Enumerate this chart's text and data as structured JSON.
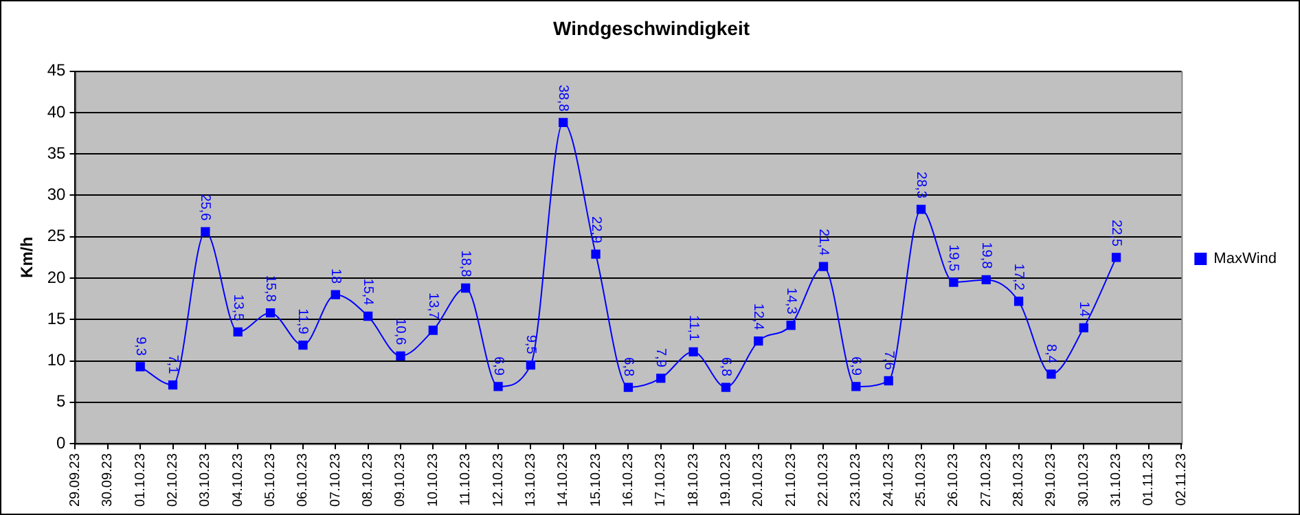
{
  "chart_data": {
    "type": "line",
    "title": "Windgeschwindigkeit",
    "ylabel": "Km/h",
    "categories": [
      "29.09.23",
      "30.09.23",
      "01.10.23",
      "02.10.23",
      "03.10.23",
      "04.10.23",
      "05.10.23",
      "06.10.23",
      "07.10.23",
      "08.10.23",
      "09.10.23",
      "10.10.23",
      "11.10.23",
      "12.10.23",
      "13.10.23",
      "14.10.23",
      "15.10.23",
      "16.10.23",
      "17.10.23",
      "18.10.23",
      "19.10.23",
      "20.10.23",
      "21.10.23",
      "22.10.23",
      "23.10.23",
      "24.10.23",
      "25.10.23",
      "26.10.23",
      "27.10.23",
      "28.10.23",
      "29.10.23",
      "30.10.23",
      "31.10.23",
      "01.11.23",
      "02.11.23"
    ],
    "series": [
      {
        "name": "MaxWind",
        "color": "#0000ff",
        "values": [
          null,
          null,
          9.3,
          7.1,
          25.6,
          13.5,
          15.8,
          11.9,
          18,
          15.4,
          10.6,
          13.7,
          18.8,
          6.9,
          9.5,
          38.8,
          22.9,
          6.8,
          7.9,
          11.1,
          6.8,
          12.4,
          14.3,
          21.4,
          6.9,
          7.6,
          28.3,
          19.5,
          19.8,
          17.2,
          8.4,
          14,
          22.5,
          null,
          null
        ],
        "value_labels": [
          null,
          null,
          "9,3",
          "7,1",
          "25,6",
          "13,5",
          "15,8",
          "11,9",
          "18",
          "15,4",
          "10,6",
          "13,7",
          "18,8",
          "6,9",
          "9,5",
          "38,8",
          "22,9",
          "6,8",
          "7,9",
          "11,1",
          "6,8",
          "12,4",
          "14,3",
          "21,4",
          "6,9",
          "7,6",
          "28,3",
          "19,5",
          "19,8",
          "17,2",
          "8,4",
          "14",
          "22,5",
          null,
          null
        ]
      }
    ],
    "ylim": [
      0,
      45
    ],
    "yticks": [
      0,
      5,
      10,
      15,
      20,
      25,
      30,
      35,
      40,
      45
    ],
    "grid": "y",
    "legend": "right",
    "marker": "square",
    "line_style": "solid"
  }
}
